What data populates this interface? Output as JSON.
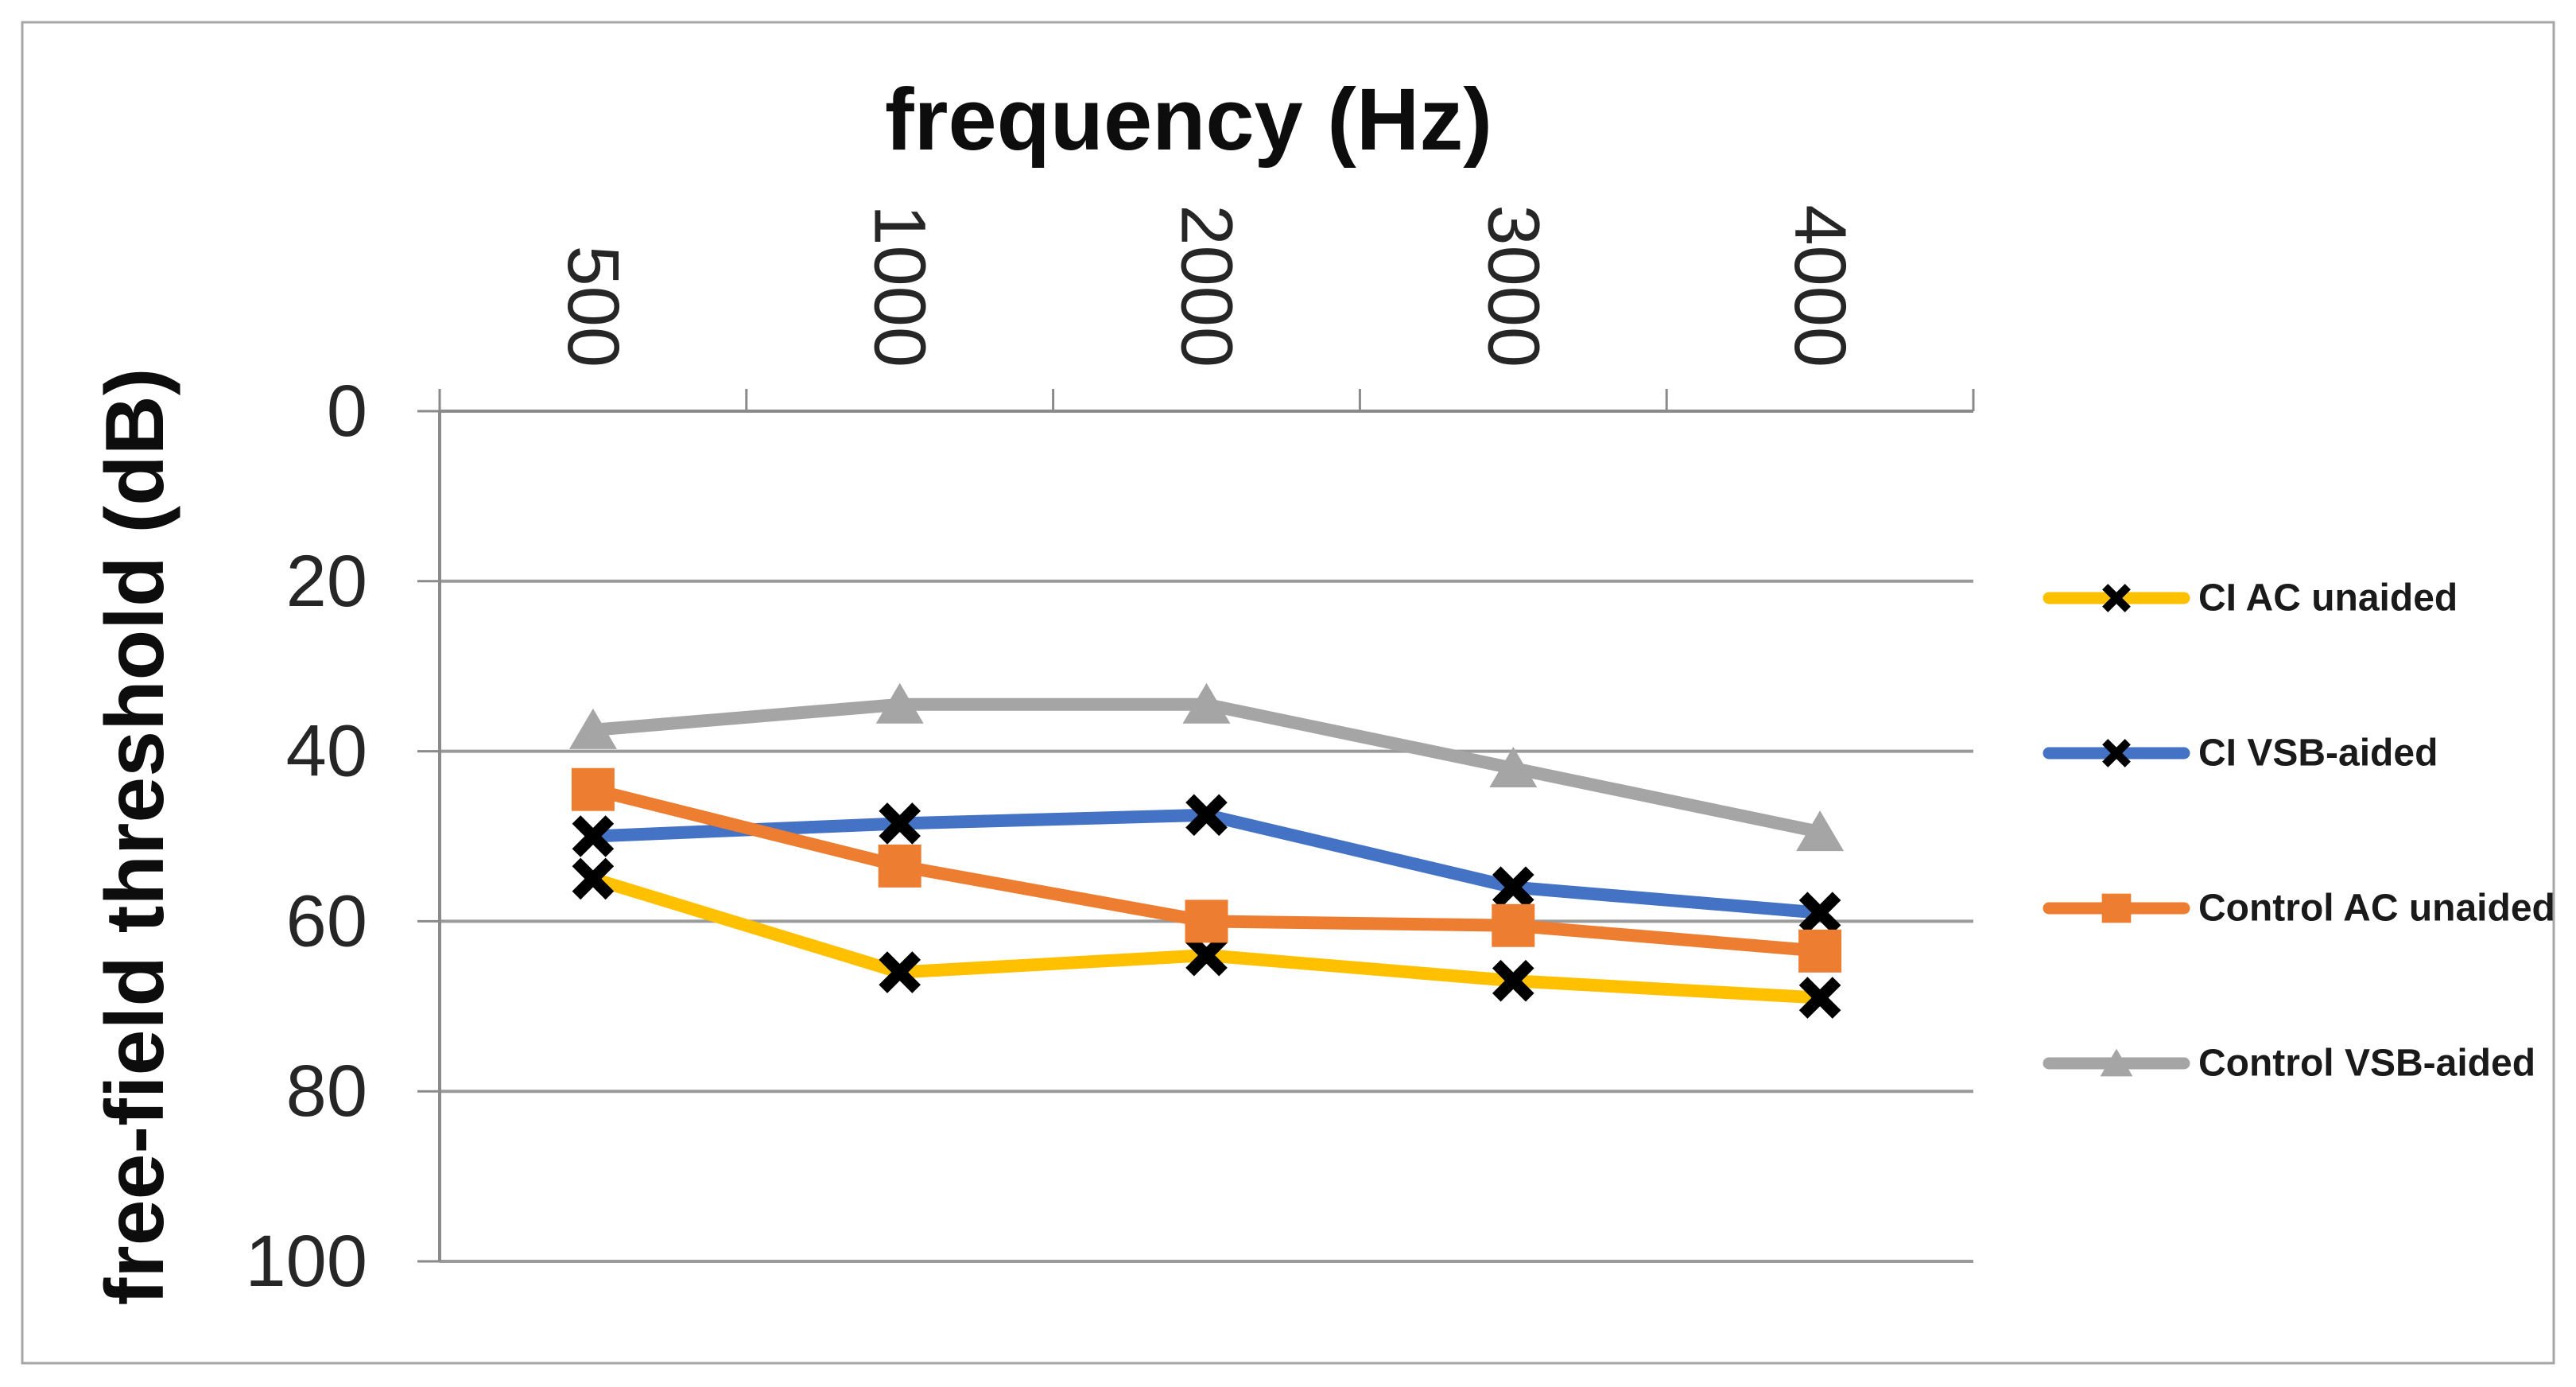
{
  "figure": {
    "title": "frequency (Hz)",
    "y_axis_title": "free-field threshold (dB)"
  },
  "chart_data": {
    "type": "line",
    "title": "frequency (Hz)",
    "title_position": "top",
    "xlabel": "frequency (Hz)",
    "ylabel": "free-field threshold (dB)",
    "x_axis_position": "top",
    "x_tick_labels_rotated": "90deg-reading-top-to-bottom",
    "categories": [
      "500",
      "1000",
      "2000",
      "3000",
      "4000"
    ],
    "y_ticks": [
      "0",
      "20",
      "40",
      "60",
      "80",
      "100"
    ],
    "ylim": [
      0,
      100
    ],
    "y_axis_inverted": true,
    "grid": "horizontal",
    "legend_position": "right",
    "series": [
      {
        "name": "CI AC unaided",
        "color": "#FFC000",
        "marker": "x",
        "marker_color": "#000000",
        "values": [
          55,
          66,
          64,
          67,
          69
        ]
      },
      {
        "name": "CI VSB-aided",
        "color": "#4472C4",
        "marker": "x",
        "marker_color": "#000000",
        "values": [
          50,
          48.5,
          47.5,
          56,
          59
        ]
      },
      {
        "name": "Control AC unaided",
        "color": "#ED7D31",
        "marker": "square",
        "marker_color": "#ED7D31",
        "values": [
          44.5,
          53.5,
          60,
          60.5,
          63.5
        ]
      },
      {
        "name": "Control VSB-aided",
        "color": "#A5A5A5",
        "marker": "triangle",
        "marker_color": "#A5A5A5",
        "values": [
          37.5,
          34.5,
          34.5,
          42,
          49.5
        ]
      }
    ]
  },
  "style_colors": {
    "axis_line": "#8a8a8a",
    "gridline": "#9a9a9a",
    "outer_border": "#a6a6a6",
    "background": "#ffffff",
    "text": "#1a1a1a"
  }
}
